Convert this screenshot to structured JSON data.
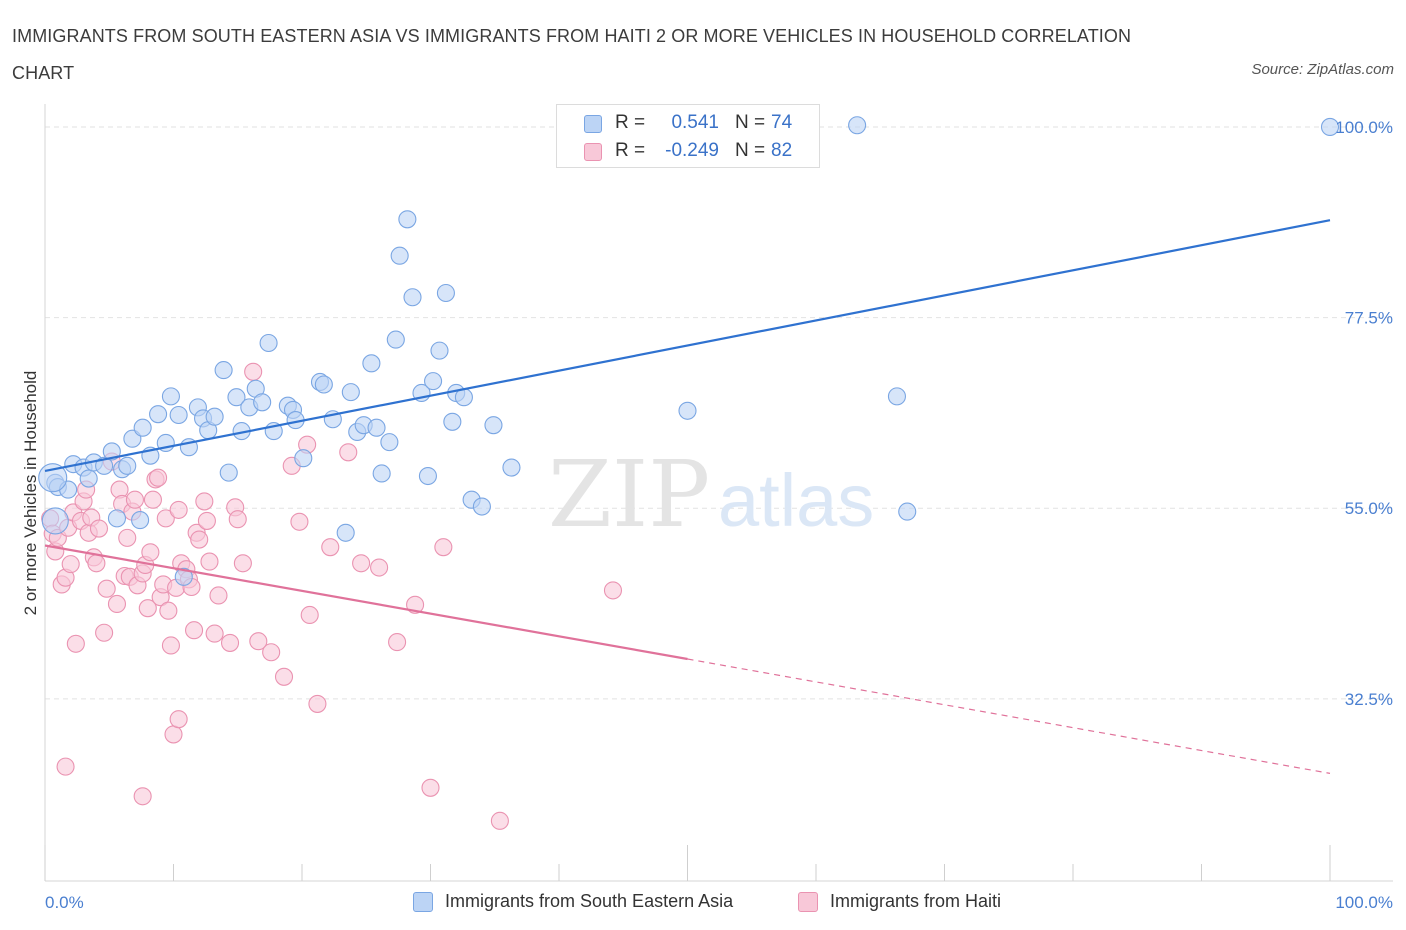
{
  "title": "IMMIGRANTS FROM SOUTH EASTERN ASIA VS IMMIGRANTS FROM HAITI 2 OR MORE VEHICLES IN HOUSEHOLD CORRELATION CHART",
  "source": "Source: ZipAtlas.com",
  "watermark": {
    "zip": "ZIP",
    "atlas": "atlas"
  },
  "legend_top": {
    "rows": [
      {
        "r_label": "R =",
        "r_value": "0.541",
        "n_label": "N =",
        "n_value": "74"
      },
      {
        "r_label": "R =",
        "r_value": "-0.249",
        "n_label": "N =",
        "n_value": "82"
      }
    ]
  },
  "colors": {
    "blue_fill": "#bcd4f5",
    "blue_stroke": "#7aa6e3",
    "blue_line": "#2f72d0",
    "pink_fill": "#f8c8d8",
    "pink_stroke": "#ea93b1",
    "pink_line": "#e0729a",
    "tick_text": "#4a7fd0",
    "grid": "#e2e2e2"
  },
  "chart_data": {
    "type": "scatter",
    "title": "IMMIGRANTS FROM SOUTH EASTERN ASIA VS IMMIGRANTS FROM HAITI 2 OR MORE VEHICLES IN HOUSEHOLD CORRELATION CHART",
    "xlabel": "",
    "ylabel": "2 or more Vehicles in Household",
    "xlim": [
      0,
      100
    ],
    "ylim": [
      11,
      102
    ],
    "x_tick_labels": [
      "0.0%",
      "100.0%"
    ],
    "y_ticks": [
      32.5,
      55.0,
      77.5,
      100.0
    ],
    "y_tick_labels": [
      "32.5%",
      "55.0%",
      "77.5%",
      "100.0%"
    ],
    "grid": true,
    "legend_position": "bottom",
    "series": [
      {
        "name": "Immigrants from South Eastern Asia",
        "trend": {
          "x": [
            0,
            100
          ],
          "y": [
            59.4,
            89.0
          ]
        },
        "points": [
          [
            0.8,
            58.0
          ],
          [
            1.0,
            57.5
          ],
          [
            1.8,
            57.2
          ],
          [
            2.2,
            60.2
          ],
          [
            3.0,
            59.8
          ],
          [
            3.4,
            58.5
          ],
          [
            3.8,
            60.4
          ],
          [
            4.6,
            60.0
          ],
          [
            5.2,
            61.7
          ],
          [
            5.6,
            53.8
          ],
          [
            6.0,
            59.6
          ],
          [
            6.4,
            60.0
          ],
          [
            6.8,
            63.2
          ],
          [
            7.6,
            64.5
          ],
          [
            7.4,
            53.6
          ],
          [
            8.2,
            61.2
          ],
          [
            8.8,
            66.1
          ],
          [
            9.4,
            62.7
          ],
          [
            9.8,
            68.2
          ],
          [
            10.4,
            66.0
          ],
          [
            10.8,
            46.9
          ],
          [
            11.2,
            62.2
          ],
          [
            11.9,
            66.9
          ],
          [
            12.3,
            65.6
          ],
          [
            12.7,
            64.2
          ],
          [
            13.2,
            65.8
          ],
          [
            13.9,
            71.3
          ],
          [
            14.3,
            59.2
          ],
          [
            14.9,
            68.1
          ],
          [
            15.3,
            64.1
          ],
          [
            15.9,
            66.9
          ],
          [
            16.4,
            69.1
          ],
          [
            16.9,
            67.5
          ],
          [
            17.4,
            74.5
          ],
          [
            17.8,
            64.1
          ],
          [
            18.9,
            67.1
          ],
          [
            19.3,
            66.6
          ],
          [
            19.5,
            65.4
          ],
          [
            20.1,
            60.9
          ],
          [
            21.4,
            69.9
          ],
          [
            21.7,
            69.6
          ],
          [
            22.4,
            65.5
          ],
          [
            23.4,
            52.1
          ],
          [
            23.8,
            68.7
          ],
          [
            24.3,
            64.0
          ],
          [
            24.8,
            64.8
          ],
          [
            25.4,
            72.1
          ],
          [
            25.8,
            64.5
          ],
          [
            26.2,
            59.1
          ],
          [
            26.8,
            62.8
          ],
          [
            27.3,
            74.9
          ],
          [
            27.6,
            84.8
          ],
          [
            28.2,
            89.1
          ],
          [
            28.6,
            79.9
          ],
          [
            29.3,
            68.6
          ],
          [
            29.8,
            58.8
          ],
          [
            30.2,
            70.0
          ],
          [
            30.7,
            73.6
          ],
          [
            31.2,
            80.4
          ],
          [
            31.7,
            65.2
          ],
          [
            32.0,
            68.6
          ],
          [
            32.6,
            68.1
          ],
          [
            33.2,
            56.0
          ],
          [
            34.0,
            55.2
          ],
          [
            34.9,
            64.8
          ],
          [
            36.3,
            59.8
          ],
          [
            50.0,
            66.5
          ],
          [
            63.2,
            100.2
          ],
          [
            66.3,
            68.2
          ],
          [
            67.1,
            54.6
          ],
          [
            100.0,
            100.0
          ]
        ]
      },
      {
        "name": "Immigrants from Haiti",
        "trend": {
          "x": [
            0,
            50
          ],
          "y": [
            50.6,
            37.2
          ]
        },
        "trend_dashed": {
          "x": [
            50,
            100
          ],
          "y": [
            37.2,
            23.7
          ]
        },
        "points": [
          [
            0.4,
            53.8
          ],
          [
            0.6,
            52.0
          ],
          [
            0.8,
            49.9
          ],
          [
            1.0,
            51.5
          ],
          [
            1.3,
            46.0
          ],
          [
            1.6,
            46.8
          ],
          [
            1.8,
            52.7
          ],
          [
            2.0,
            48.4
          ],
          [
            2.2,
            54.5
          ],
          [
            2.4,
            39.0
          ],
          [
            2.8,
            53.5
          ],
          [
            3.0,
            55.8
          ],
          [
            3.2,
            57.2
          ],
          [
            3.4,
            52.1
          ],
          [
            3.6,
            53.9
          ],
          [
            3.8,
            49.2
          ],
          [
            4.0,
            48.5
          ],
          [
            4.2,
            52.6
          ],
          [
            4.6,
            40.3
          ],
          [
            4.8,
            45.5
          ],
          [
            5.2,
            60.5
          ],
          [
            5.6,
            43.7
          ],
          [
            5.8,
            57.2
          ],
          [
            6.0,
            55.5
          ],
          [
            6.2,
            47.0
          ],
          [
            6.4,
            51.5
          ],
          [
            6.6,
            46.9
          ],
          [
            6.8,
            54.6
          ],
          [
            7.0,
            56.0
          ],
          [
            7.2,
            45.9
          ],
          [
            7.6,
            47.3
          ],
          [
            7.8,
            48.3
          ],
          [
            8.0,
            43.2
          ],
          [
            8.2,
            49.8
          ],
          [
            8.4,
            56.0
          ],
          [
            8.6,
            58.4
          ],
          [
            8.8,
            58.6
          ],
          [
            9.0,
            44.5
          ],
          [
            9.2,
            46.0
          ],
          [
            9.4,
            53.8
          ],
          [
            9.6,
            42.9
          ],
          [
            9.8,
            38.8
          ],
          [
            10.2,
            45.6
          ],
          [
            10.4,
            54.8
          ],
          [
            10.6,
            48.5
          ],
          [
            11.0,
            47.8
          ],
          [
            11.2,
            46.6
          ],
          [
            11.4,
            45.7
          ],
          [
            11.6,
            40.6
          ],
          [
            11.8,
            52.1
          ],
          [
            12.0,
            51.3
          ],
          [
            12.4,
            55.8
          ],
          [
            12.6,
            53.5
          ],
          [
            12.8,
            48.7
          ],
          [
            13.2,
            40.2
          ],
          [
            13.5,
            44.7
          ],
          [
            14.4,
            39.1
          ],
          [
            14.8,
            55.1
          ],
          [
            15.0,
            53.7
          ],
          [
            15.4,
            48.5
          ],
          [
            16.2,
            71.1
          ],
          [
            16.6,
            39.3
          ],
          [
            17.6,
            38.0
          ],
          [
            18.6,
            35.1
          ],
          [
            19.2,
            60.0
          ],
          [
            19.8,
            53.4
          ],
          [
            20.4,
            62.5
          ],
          [
            20.6,
            42.4
          ],
          [
            21.2,
            31.9
          ],
          [
            22.2,
            50.4
          ],
          [
            23.6,
            61.6
          ],
          [
            24.6,
            48.5
          ],
          [
            26.0,
            48.0
          ],
          [
            27.4,
            39.2
          ],
          [
            28.8,
            43.6
          ],
          [
            30.0,
            22.0
          ],
          [
            31.0,
            50.4
          ],
          [
            35.4,
            18.1
          ],
          [
            44.2,
            45.3
          ],
          [
            10.0,
            28.3
          ],
          [
            10.4,
            30.1
          ],
          [
            1.6,
            24.5
          ],
          [
            7.6,
            21.0
          ]
        ]
      }
    ]
  },
  "legend_bottom": [
    {
      "label": "Immigrants from South Eastern Asia"
    },
    {
      "label": "Immigrants from Haiti"
    }
  ]
}
